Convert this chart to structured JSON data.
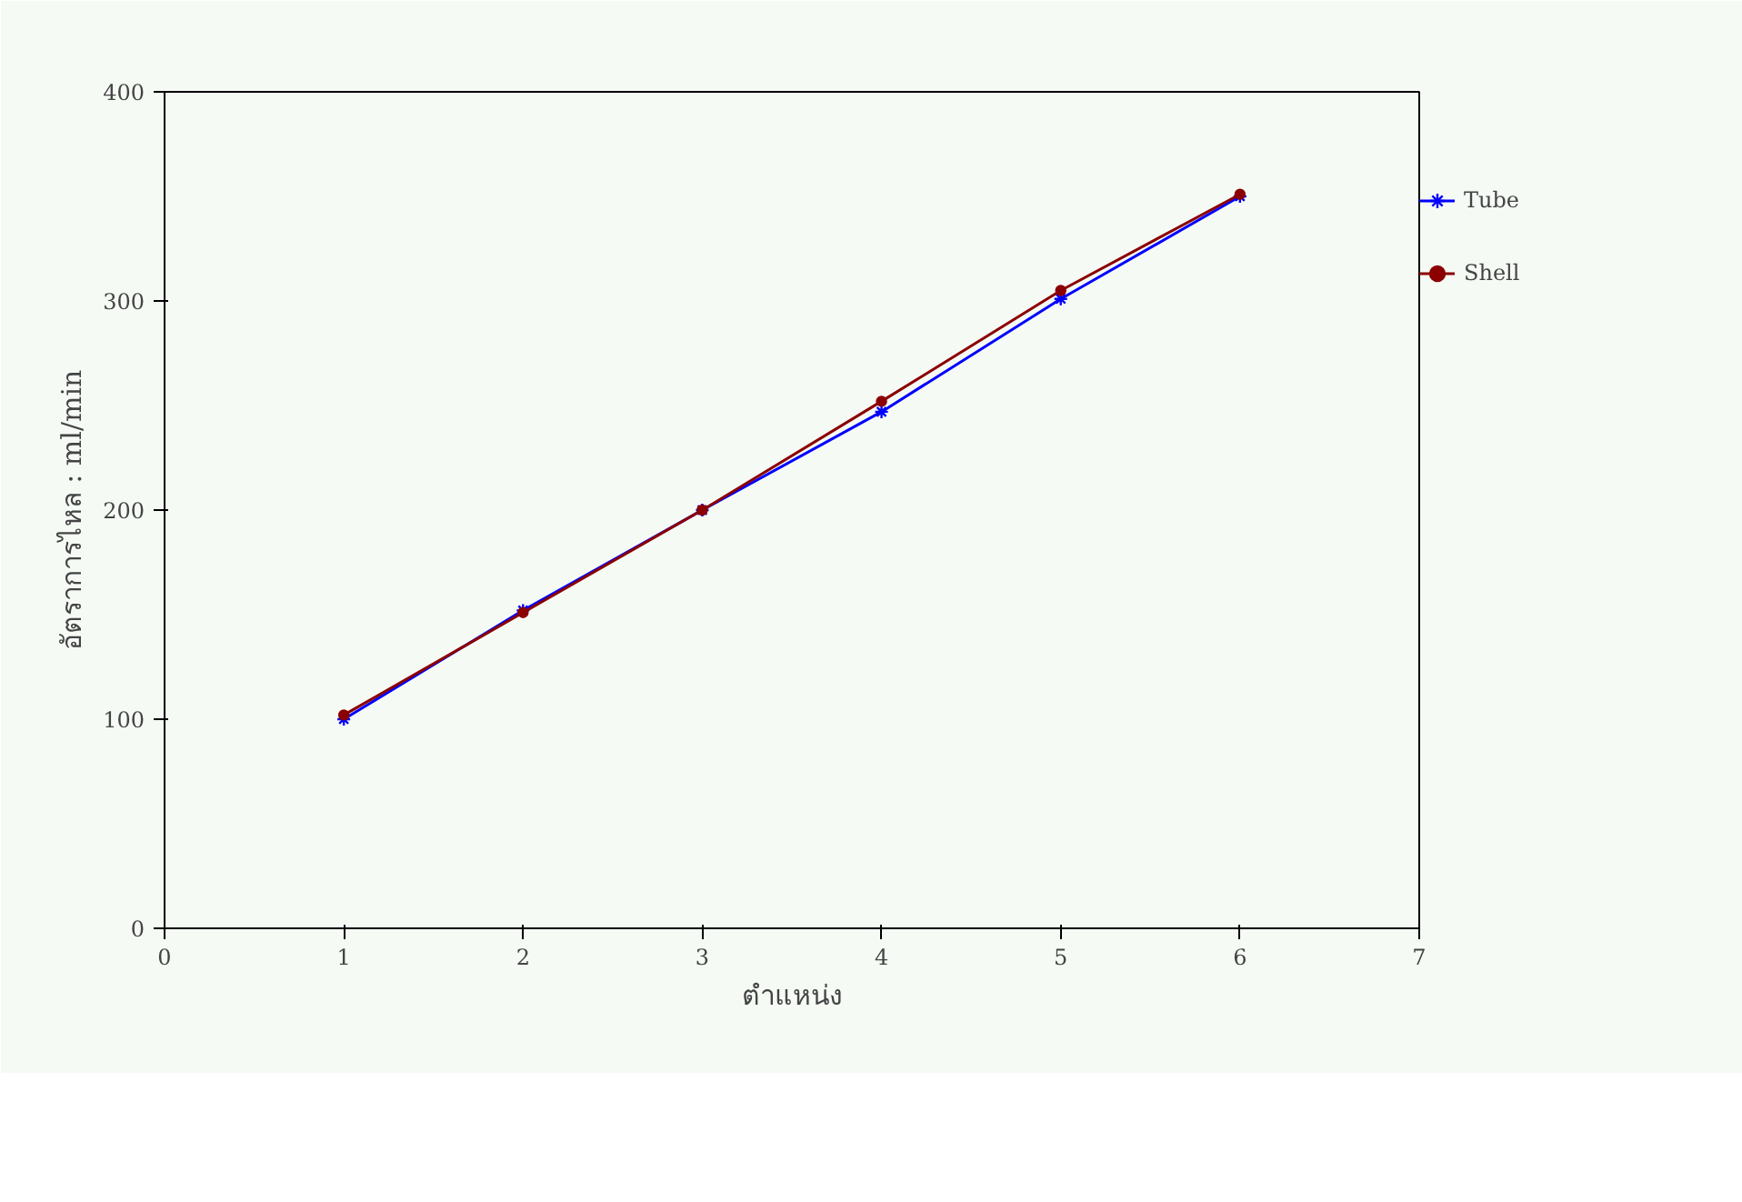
{
  "chart_data": {
    "type": "line",
    "xlabel": "ตำแหน่ง",
    "ylabel": "อัตราการไหล : ml/min",
    "x": [
      1,
      2,
      3,
      4,
      5,
      6
    ],
    "series": [
      {
        "name": "Tube",
        "color": "#0000ff",
        "marker": "cross",
        "values": [
          100,
          152,
          200,
          247,
          301,
          350
        ]
      },
      {
        "name": "Shell",
        "color": "#8b0000",
        "marker": "circle",
        "values": [
          102,
          151,
          200,
          252,
          305,
          351
        ]
      }
    ],
    "xlim": [
      0,
      7
    ],
    "xticks": [
      0,
      1,
      2,
      3,
      4,
      5,
      6,
      7
    ],
    "ylim": [
      0,
      400
    ],
    "yticks": [
      0,
      100,
      200,
      300,
      400
    ],
    "grid": false,
    "legend": "right",
    "line_style": "solid"
  }
}
